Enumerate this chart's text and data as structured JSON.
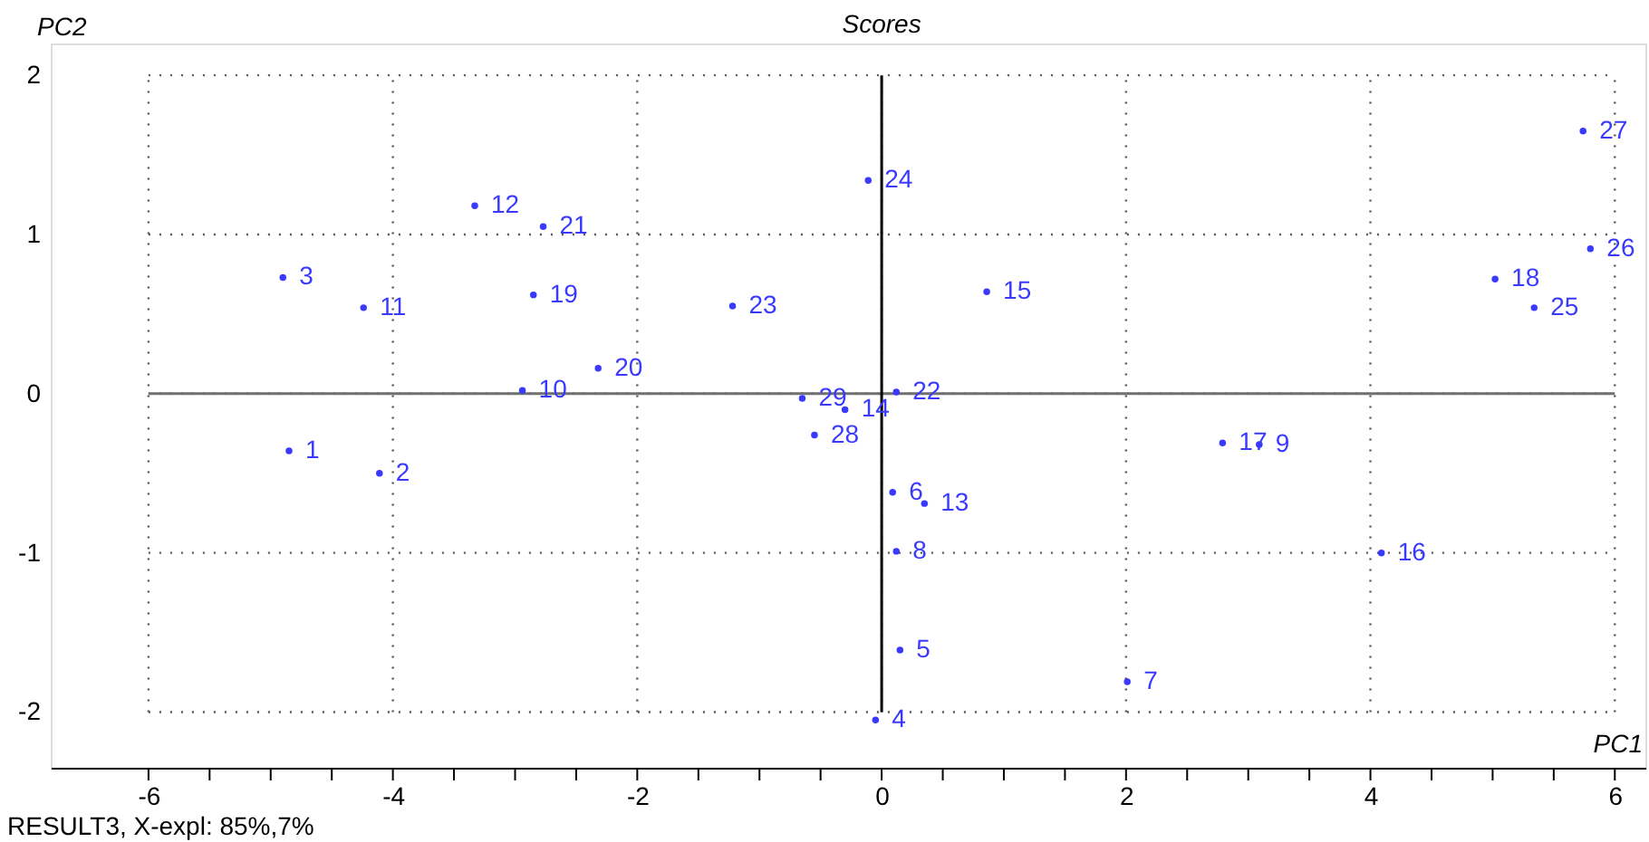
{
  "chart_data": {
    "type": "scatter",
    "title": "Scores",
    "xlabel": "PC1",
    "ylabel": "PC2",
    "annotations": [
      "RESULT3, X-expl: 85%,7%",
      {
        "text": "1",
        "x": -4.85,
        "y": -0.36
      },
      {
        "text": "2",
        "x": -4.11,
        "y": -0.5
      },
      {
        "text": "3",
        "x": -4.9,
        "y": 0.73
      },
      {
        "text": "4",
        "x": -0.05,
        "y": -2.05
      },
      {
        "text": "5",
        "x": 0.15,
        "y": -1.61
      },
      {
        "text": "6",
        "x": 0.09,
        "y": -0.62
      },
      {
        "text": "7",
        "x": 2.01,
        "y": -1.81
      },
      {
        "text": "8",
        "x": 0.12,
        "y": -0.99
      },
      {
        "text": "9",
        "x": 3.09,
        "y": -0.32
      },
      {
        "text": "10",
        "x": -2.94,
        "y": 0.02
      },
      {
        "text": "11",
        "x": -4.24,
        "y": 0.54
      },
      {
        "text": "12",
        "x": -3.33,
        "y": 1.18
      },
      {
        "text": "13",
        "x": 0.35,
        "y": -0.69
      },
      {
        "text": "14",
        "x": -0.3,
        "y": -0.1
      },
      {
        "text": "15",
        "x": 0.86,
        "y": 0.64
      },
      {
        "text": "16",
        "x": 4.09,
        "y": -1.0
      },
      {
        "text": "17",
        "x": 2.79,
        "y": -0.31
      },
      {
        "text": "18",
        "x": 5.02,
        "y": 0.72
      },
      {
        "text": "19",
        "x": -2.85,
        "y": 0.62
      },
      {
        "text": "20",
        "x": -2.32,
        "y": 0.16
      },
      {
        "text": "21",
        "x": -2.77,
        "y": 1.05
      },
      {
        "text": "22",
        "x": 0.12,
        "y": 0.01
      },
      {
        "text": "23",
        "x": -1.22,
        "y": 0.55
      },
      {
        "text": "24",
        "x": -0.11,
        "y": 1.34
      },
      {
        "text": "25",
        "x": 5.34,
        "y": 0.54
      },
      {
        "text": "26",
        "x": 5.8,
        "y": 0.91
      },
      {
        "text": "27",
        "x": 5.74,
        "y": 1.65
      },
      {
        "text": "28",
        "x": -0.55,
        "y": -0.26
      },
      {
        "text": "29",
        "x": -0.65,
        "y": -0.03
      }
    ],
    "x": [
      -4.85,
      -4.11,
      -4.9,
      -0.05,
      0.15,
      0.09,
      2.01,
      0.12,
      3.09,
      -2.94,
      -4.24,
      -3.33,
      0.35,
      -0.3,
      0.86,
      4.09,
      2.79,
      5.02,
      -2.85,
      -2.32,
      -2.77,
      0.12,
      -1.22,
      -0.11,
      5.34,
      5.8,
      5.74,
      -0.55,
      -0.65
    ],
    "series": [
      {
        "color": "#3a3aff",
        "values": [
          -0.36,
          -0.5,
          0.73,
          -2.05,
          -1.61,
          -0.62,
          -1.81,
          -0.99,
          -0.32,
          0.02,
          0.54,
          1.18,
          -0.69,
          -0.1,
          0.64,
          -1.0,
          -0.31,
          0.72,
          0.62,
          0.16,
          1.05,
          0.01,
          0.55,
          1.34,
          0.54,
          0.91,
          1.65,
          -0.26,
          -0.03
        ]
      }
    ],
    "marker": "circle",
    "grid": true,
    "xlim": [
      -6.8,
      6.25
    ],
    "ylim": [
      -2.35,
      2.2
    ],
    "xticks": [
      -6,
      {
        "value": -5.5,
        "label": null
      },
      {
        "value": -5,
        "label": null
      },
      {
        "value": -4.5,
        "label": null
      },
      -4,
      {
        "value": -3.5,
        "label": null
      },
      {
        "value": -3,
        "label": null
      },
      {
        "value": -2.5,
        "label": null
      },
      -2,
      {
        "value": -1.5,
        "label": null
      },
      {
        "value": -1,
        "label": null
      },
      {
        "value": -0.5,
        "label": null
      },
      0,
      {
        "value": 0.5,
        "label": null
      },
      {
        "value": 1,
        "label": null
      },
      {
        "value": 1.5,
        "label": null
      },
      2,
      {
        "value": 2.5,
        "label": null
      },
      {
        "value": 3,
        "label": null
      },
      {
        "value": 3.5,
        "label": null
      },
      4,
      {
        "value": 4.5,
        "label": null
      },
      {
        "value": 5,
        "label": null
      },
      {
        "value": 5.5,
        "label": null
      },
      6
    ],
    "yticks": [
      -2,
      -1,
      0,
      1,
      2
    ],
    "ref_lines": [
      {
        "axis": "y",
        "value": 0,
        "color": "#707070"
      },
      {
        "axis": "x",
        "value": 0,
        "color": "#000000"
      }
    ]
  }
}
